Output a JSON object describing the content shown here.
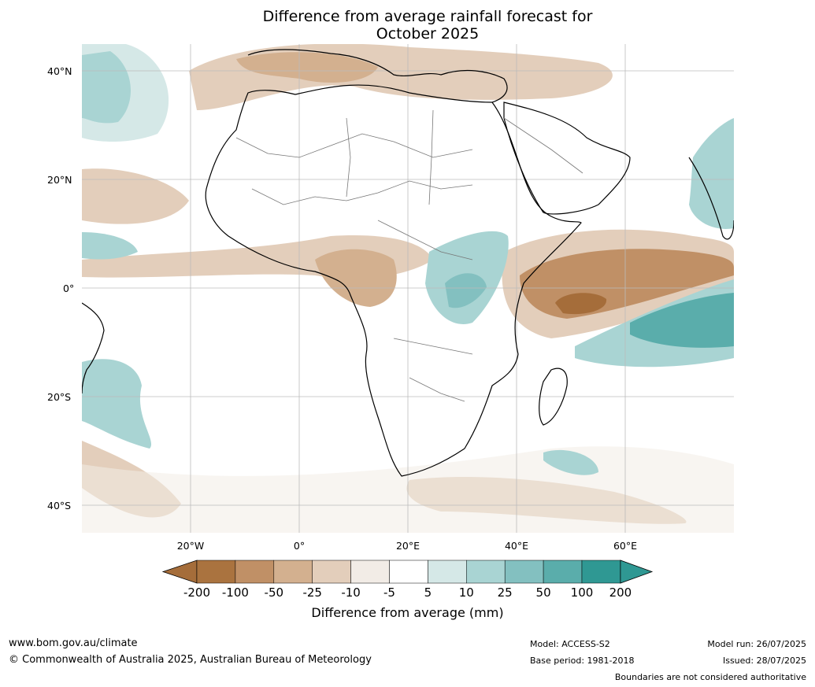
{
  "title": {
    "line1": "Difference from average rainfall forecast for",
    "line2": "October 2025"
  },
  "map": {
    "region": "Africa",
    "latitude_labels": [
      "40°N",
      "20°N",
      "0°",
      "20°S",
      "40°S"
    ],
    "longitude_labels": [
      "20°W",
      "0°",
      "20°E",
      "40°E",
      "60°E"
    ]
  },
  "legend": {
    "tick_labels": [
      "-200",
      "-100",
      "-50",
      "-25",
      "-10",
      "-5",
      "5",
      "10",
      "25",
      "50",
      "100",
      "200"
    ],
    "colors": [
      "#a56d3a",
      "#aa733f",
      "#c09066",
      "#d3b08f",
      "#e3cebb",
      "#f2ece6",
      "#ffffff",
      "#d5e8e7",
      "#a9d4d3",
      "#83c0c0",
      "#5aadab",
      "#2f9893",
      "#2f9893"
    ],
    "label": "Difference from average (mm)"
  },
  "footer": {
    "website": "www.bom.gov.au/climate",
    "copyright": "© Commonwealth of Australia 2025, Australian Bureau of Meteorology",
    "model": "Model: ACCESS-S2",
    "base_period": "Base period: 1981-2018",
    "model_run": "Model run: 26/07/2025",
    "issued": "Issued: 28/07/2025",
    "disclaimer": "Boundaries are not considered authoritative"
  }
}
